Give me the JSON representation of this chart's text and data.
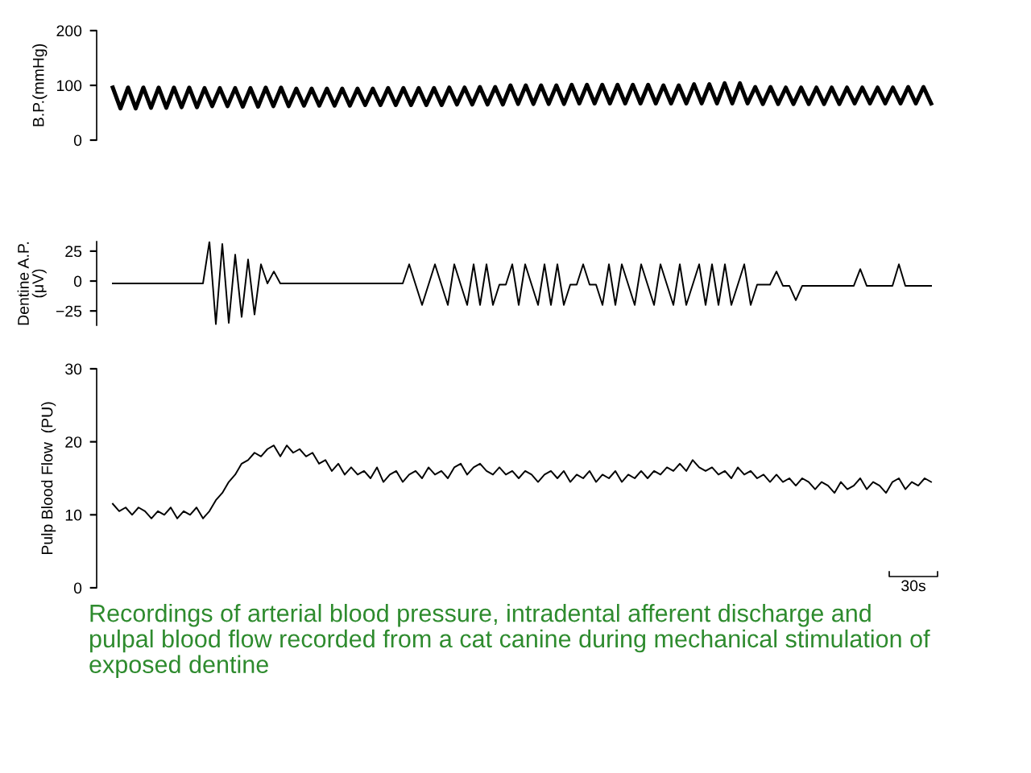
{
  "chart_data": [
    {
      "type": "line",
      "ylabel": "B.P.(mmHg)",
      "ylim": [
        0,
        200
      ],
      "yticks": [
        0,
        100,
        200
      ],
      "tick_labels": "y",
      "categories": [
        null,
        null,
        null,
        null,
        null,
        null,
        null,
        null,
        null,
        null,
        null,
        null,
        null,
        null,
        null,
        null,
        null,
        null,
        null,
        null,
        null,
        null,
        null,
        null,
        null,
        null,
        null,
        null,
        null,
        null,
        null,
        null,
        null,
        null,
        null,
        null,
        null,
        null,
        null,
        null,
        null,
        null,
        null,
        null,
        null,
        null,
        null,
        null,
        null,
        null,
        null,
        null,
        null,
        null,
        null,
        null,
        null,
        null,
        null,
        null,
        null,
        null,
        null,
        null,
        null,
        null,
        null,
        null,
        null,
        null,
        null,
        null,
        null,
        null,
        null,
        null,
        null,
        null,
        null,
        null,
        null,
        null,
        null,
        null,
        null,
        null,
        null,
        null,
        null,
        null,
        null,
        null,
        null,
        null,
        null,
        null,
        null,
        null,
        null,
        null,
        null,
        null,
        null,
        null,
        null,
        null,
        null,
        null
      ],
      "series": [
        {
          "color": "#000000",
          "values": [
            96,
            58,
            96,
            58,
            96,
            59,
            96,
            59,
            96,
            60,
            96,
            60,
            95,
            62,
            95,
            62,
            95,
            61,
            95,
            61,
            96,
            62,
            96,
            62,
            94,
            63,
            94,
            63,
            94,
            63,
            94,
            63,
            94,
            64,
            94,
            64,
            95,
            64,
            95,
            64,
            95,
            64,
            95,
            64,
            96,
            65,
            96,
            65,
            97,
            65,
            97,
            65,
            100,
            66,
            100,
            66,
            100,
            66,
            100,
            66,
            101,
            67,
            101,
            67,
            101,
            67,
            101,
            67,
            101,
            67,
            101,
            67,
            100,
            67,
            100,
            67,
            102,
            67,
            102,
            67,
            104,
            67,
            104,
            67,
            97,
            66,
            97,
            66,
            96,
            66,
            96,
            66,
            96,
            66,
            96,
            66,
            96,
            67,
            96,
            67,
            96,
            67,
            96,
            67,
            97,
            67,
            97,
            67
          ]
        }
      ]
    },
    {
      "type": "line",
      "ylabel": "Dentine A.P.\n(μV)",
      "ylim": [
        -37,
        33
      ],
      "yticks": [
        {
          "value": -25,
          "label": "−25"
        },
        0,
        25
      ],
      "tick_labels": "y",
      "categories": [
        null,
        null,
        null,
        null,
        null,
        null,
        null,
        null,
        null,
        null,
        null,
        null,
        null,
        null,
        null,
        null,
        null,
        null,
        null,
        null,
        null,
        null,
        null,
        null,
        null,
        null,
        null,
        null,
        null,
        null,
        null,
        null,
        null,
        null,
        null,
        null,
        null,
        null,
        null,
        null,
        null,
        null,
        null,
        null,
        null,
        null,
        null,
        null,
        null,
        null,
        null,
        null,
        null,
        null,
        null,
        null,
        null,
        null,
        null,
        null,
        null,
        null,
        null,
        null,
        null,
        null,
        null,
        null,
        null,
        null,
        null,
        null,
        null,
        null,
        null,
        null,
        null,
        null,
        null,
        null,
        null,
        null,
        null,
        null,
        null,
        null,
        null,
        null,
        null,
        null,
        null,
        null,
        null,
        null,
        null,
        null,
        null,
        null,
        null,
        null,
        null,
        null,
        null,
        null,
        null,
        null,
        null,
        null,
        null,
        null,
        null,
        null,
        null,
        null,
        null,
        null,
        null,
        null,
        null,
        null,
        null,
        null,
        null,
        null,
        null,
        null,
        null,
        null
      ],
      "series": [
        {
          "color": "#000000",
          "values": [
            -2,
            -2,
            -2,
            -2,
            -2,
            -2,
            -2,
            -2,
            -2,
            -2,
            -2,
            -2,
            -2,
            -2,
            -2,
            33,
            -36,
            31,
            -35,
            22,
            -30,
            18,
            -28,
            14,
            -2,
            8,
            -2,
            -2,
            -2,
            -2,
            -2,
            -2,
            -2,
            -2,
            -2,
            -2,
            -2,
            -2,
            -2,
            -2,
            -2,
            -2,
            -2,
            -2,
            -2,
            -2,
            14,
            -3,
            -20,
            -3,
            14,
            -3,
            -20,
            14,
            -3,
            -20,
            14,
            -20,
            14,
            -20,
            -3,
            -3,
            14,
            -20,
            14,
            -3,
            -20,
            14,
            -20,
            14,
            -20,
            -3,
            -3,
            14,
            -3,
            -3,
            -20,
            14,
            -20,
            14,
            -3,
            -20,
            14,
            -3,
            -20,
            14,
            -3,
            -20,
            14,
            -20,
            -3,
            14,
            -20,
            14,
            -20,
            14,
            -20,
            -3,
            14,
            -20,
            -3,
            -3,
            -3,
            8,
            -4,
            -4,
            -16,
            -4,
            -4,
            -4,
            -4,
            -4,
            -4,
            -4,
            -4,
            -4,
            10,
            -4,
            -4,
            -4,
            -4,
            -4,
            14,
            -4,
            -4,
            -4,
            -4,
            -4
          ]
        }
      ]
    },
    {
      "type": "line",
      "ylabel": "Pulp Blood Flow  (PU)",
      "ylim": [
        0,
        30
      ],
      "yticks": [
        0,
        10,
        20,
        30
      ],
      "tick_labels": "y",
      "annotations": [
        "30s",
        "Recordings of arterial blood pressure, intradental afferent discharge and\npulpal blood flow recorded from a cat canine during mechanical stimulation of\nexposed dentine"
      ],
      "categories": [
        null,
        null,
        null,
        null,
        null,
        null,
        null,
        null,
        null,
        null,
        null,
        null,
        null,
        null,
        null,
        null,
        null,
        null,
        null,
        null,
        null,
        null,
        null,
        null,
        null,
        null,
        null,
        null,
        null,
        null,
        null,
        null,
        null,
        null,
        null,
        null,
        null,
        null,
        null,
        null,
        null,
        null,
        null,
        null,
        null,
        null,
        null,
        null,
        null,
        null,
        null,
        null,
        null,
        null,
        null,
        null,
        null,
        null,
        null,
        null,
        null,
        null,
        null,
        null,
        null,
        null,
        null,
        null,
        null,
        null,
        null,
        null,
        null,
        null,
        null,
        null,
        null,
        null,
        null,
        null,
        null,
        null,
        null,
        null,
        null,
        null,
        null,
        null,
        null,
        null,
        null,
        null,
        null,
        null,
        null,
        null,
        null,
        null,
        null,
        null,
        null,
        null,
        null,
        null,
        null,
        null,
        null,
        null,
        null,
        null,
        null,
        null,
        null,
        null,
        null,
        null,
        null,
        null,
        null,
        null,
        null,
        null,
        null,
        null,
        null,
        null,
        null,
        null
      ],
      "series": [
        {
          "color": "#000000",
          "values": [
            11.5,
            10.5,
            11,
            10,
            11,
            10.5,
            9.5,
            10.5,
            10,
            11,
            9.5,
            10.5,
            10,
            11,
            9.5,
            10.5,
            12,
            13,
            14.5,
            15.5,
            17,
            17.5,
            18.5,
            18,
            19,
            19.5,
            18,
            19.5,
            18.5,
            19,
            18,
            18.5,
            17,
            17.5,
            16,
            17,
            15.5,
            16.5,
            15.5,
            16,
            15,
            16.5,
            14.5,
            15.5,
            16,
            14.5,
            15.5,
            16,
            15,
            16.5,
            15.5,
            16,
            15,
            16.5,
            17,
            15.5,
            16.5,
            17,
            16,
            15.5,
            16.5,
            15.5,
            16,
            15,
            16,
            15.5,
            14.5,
            15.5,
            16,
            15,
            16,
            14.5,
            15.5,
            15,
            16,
            14.5,
            15.5,
            15,
            16,
            14.5,
            15.5,
            15,
            16,
            15,
            16,
            15.5,
            16.5,
            16,
            17,
            16,
            17.5,
            16.5,
            16,
            16.5,
            15.5,
            16,
            15,
            16.5,
            15.5,
            16,
            15,
            15.5,
            14.5,
            15.5,
            14.5,
            15,
            14,
            15,
            14.5,
            13.5,
            14.5,
            14,
            13,
            14.5,
            13.5,
            14,
            15,
            13.5,
            14.5,
            14,
            13,
            14.5,
            15,
            13.5,
            14.5,
            14,
            15,
            14.5
          ]
        }
      ]
    }
  ]
}
